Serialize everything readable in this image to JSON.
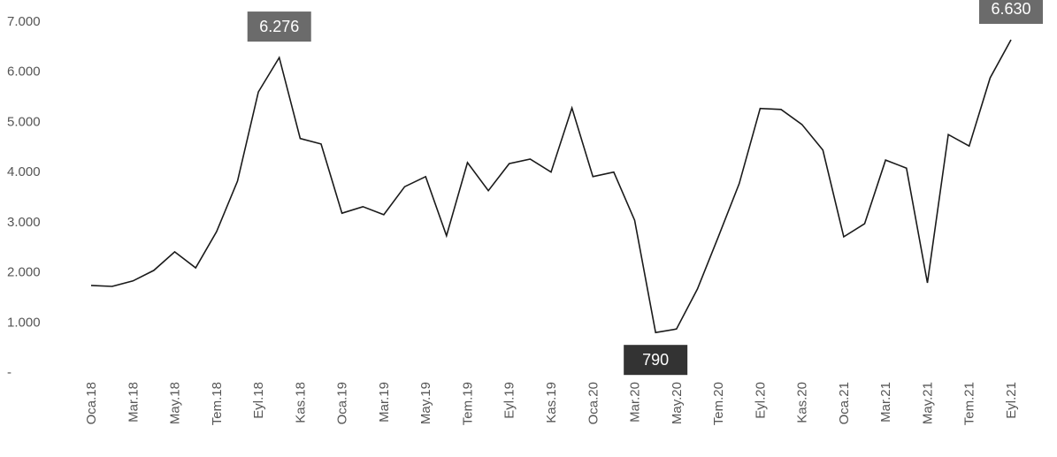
{
  "chart_data": {
    "type": "line",
    "categories": [
      "Oca.18",
      null,
      "Mar.18",
      null,
      "May.18",
      null,
      "Tem.18",
      null,
      "Eyl.18",
      null,
      "Kas.18",
      null,
      "Oca.19",
      null,
      "Mar.19",
      null,
      "May.19",
      null,
      "Tem.19",
      null,
      "Eyl.19",
      null,
      "Kas.19",
      null,
      "Oca.20",
      null,
      "Mar.20",
      null,
      "May.20",
      null,
      "Tem.20",
      null,
      "Eyl.20",
      null,
      "Kas.20",
      null,
      "Oca.21",
      null,
      "Mar.21",
      null,
      "May.21",
      null,
      "Tem.21",
      null,
      "Eyl.21"
    ],
    "values": [
      1730,
      1710,
      1820,
      2030,
      2400,
      2080,
      2800,
      3810,
      5590,
      6276,
      4660,
      4550,
      3170,
      3300,
      3140,
      3700,
      3900,
      2720,
      4180,
      3620,
      4160,
      4250,
      3990,
      5270,
      3900,
      3990,
      3030,
      790,
      860,
      1660,
      2700,
      3760,
      5260,
      5240,
      4940,
      4430,
      2700,
      2960,
      4230,
      4070,
      1780,
      4740,
      4510,
      5870,
      6630
    ],
    "value_labels": [
      null,
      null,
      null,
      null,
      null,
      null,
      null,
      null,
      null,
      "6.276",
      null,
      null,
      null,
      null,
      null,
      null,
      null,
      null,
      null,
      null,
      null,
      null,
      null,
      null,
      null,
      null,
      null,
      "790",
      null,
      null,
      null,
      null,
      null,
      null,
      null,
      null,
      null,
      null,
      null,
      null,
      null,
      null,
      null,
      null,
      "6.630"
    ],
    "color": "#1a1a1a",
    "ylim": [
      0,
      7000
    ],
    "yticks": [
      {
        "value": 0,
        "label": "-"
      },
      {
        "value": 1000,
        "label": "1.000"
      },
      {
        "value": 2000,
        "label": "2.000"
      },
      {
        "value": 3000,
        "label": "3.000"
      },
      {
        "value": 4000,
        "label": "4.000"
      },
      {
        "value": 5000,
        "label": "5.000"
      },
      {
        "value": 6000,
        "label": "6.000"
      },
      {
        "value": 7000,
        "label": "7.000"
      }
    ]
  }
}
